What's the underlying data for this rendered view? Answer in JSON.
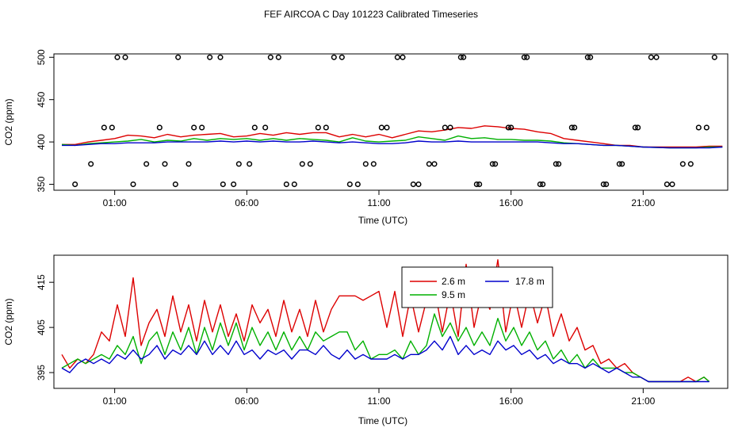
{
  "title": "FEF AIRCOA C  Day 101223  Calibrated Timeseries",
  "chart_data": [
    {
      "type": "line",
      "panel": "top",
      "xlabel": "Time (UTC)",
      "ylabel": "CO2 (ppm)",
      "x_ticks": [
        1,
        6,
        11,
        16,
        21
      ],
      "x_tick_labels": [
        "01:00",
        "06:00",
        "11:00",
        "16:00",
        "21:00"
      ],
      "y_ticks": [
        350,
        400,
        450,
        500
      ],
      "y_tick_labels": [
        "350",
        "400",
        "450",
        "500"
      ],
      "xlim": [
        -1.3,
        24.2
      ],
      "ylim": [
        343,
        504
      ],
      "series": [
        {
          "name": "2.6 m",
          "color": "#dd0000",
          "x": [
            -1.0,
            -0.5,
            0.0,
            0.5,
            1.0,
            1.5,
            2.0,
            2.5,
            3.0,
            3.5,
            4.0,
            4.5,
            5.0,
            5.5,
            6.0,
            6.5,
            7.0,
            7.5,
            8.0,
            8.5,
            9.0,
            9.5,
            10.0,
            10.5,
            11.0,
            11.5,
            12.0,
            12.5,
            13.0,
            13.5,
            14.0,
            14.5,
            15.0,
            15.5,
            16.0,
            16.5,
            17.0,
            17.5,
            18.0,
            18.5,
            19.0,
            19.5,
            20.0,
            20.5,
            21.0,
            22.0,
            23.0,
            23.5,
            24.0
          ],
          "values": [
            397,
            397,
            400,
            402,
            404,
            408,
            407,
            405,
            409,
            406,
            408,
            409,
            410,
            406,
            407,
            410,
            408,
            411,
            409,
            411,
            411,
            406,
            409,
            406,
            409,
            405,
            409,
            413,
            412,
            414,
            417,
            416,
            419,
            418,
            416,
            415,
            412,
            410,
            404,
            402,
            400,
            398,
            396,
            396,
            394,
            394,
            394,
            395,
            395
          ]
        },
        {
          "name": "9.5 m",
          "color": "#00b000",
          "x": [
            -1.0,
            -0.5,
            0.0,
            0.5,
            1.0,
            1.5,
            2.0,
            2.5,
            3.0,
            3.5,
            4.0,
            4.5,
            5.0,
            5.5,
            6.0,
            6.5,
            7.0,
            7.5,
            8.0,
            8.5,
            9.0,
            9.5,
            10.0,
            10.5,
            11.0,
            11.5,
            12.0,
            12.5,
            13.0,
            13.5,
            14.0,
            14.5,
            15.0,
            15.5,
            16.0,
            16.5,
            17.0,
            17.5,
            18.0,
            18.5,
            19.0,
            19.5,
            20.0,
            20.5,
            21.0,
            22.0,
            23.0,
            23.5,
            24.0
          ],
          "values": [
            397,
            396,
            398,
            399,
            400,
            401,
            403,
            400,
            402,
            401,
            404,
            402,
            404,
            403,
            404,
            402,
            404,
            402,
            404,
            403,
            402,
            400,
            405,
            401,
            400,
            401,
            402,
            406,
            404,
            402,
            407,
            404,
            405,
            403,
            403,
            402,
            402,
            401,
            399,
            398,
            397,
            396,
            396,
            395,
            394,
            393,
            393,
            394,
            394
          ]
        },
        {
          "name": "17.8 m",
          "color": "#0000cc",
          "x": [
            -1.0,
            -0.5,
            0.0,
            0.5,
            1.0,
            1.5,
            2.0,
            2.5,
            3.0,
            3.5,
            4.0,
            4.5,
            5.0,
            5.5,
            6.0,
            6.5,
            7.0,
            7.5,
            8.0,
            8.5,
            9.0,
            9.5,
            10.0,
            10.5,
            11.0,
            11.5,
            12.0,
            12.5,
            13.0,
            13.5,
            14.0,
            14.5,
            15.0,
            15.5,
            16.0,
            16.5,
            17.0,
            17.5,
            18.0,
            18.5,
            19.0,
            19.5,
            20.0,
            20.5,
            21.0,
            22.0,
            23.0,
            23.5,
            24.0
          ],
          "values": [
            396,
            396,
            397,
            398,
            398,
            399,
            399,
            399,
            400,
            400,
            400,
            400,
            401,
            400,
            401,
            400,
            401,
            400,
            400,
            401,
            400,
            399,
            400,
            399,
            398,
            398,
            399,
            401,
            400,
            400,
            401,
            400,
            400,
            400,
            400,
            400,
            400,
            399,
            398,
            398,
            397,
            396,
            396,
            395,
            394,
            393,
            393,
            393,
            394
          ]
        }
      ],
      "calibration_points": {
        "marker": "open-circle",
        "x": [
          -0.5,
          0.1,
          0.6,
          1.1,
          1.7,
          2.2,
          2.7,
          3.3,
          3.8,
          4.3,
          5.0,
          5.5,
          6.1,
          6.7,
          7.2,
          7.8,
          8.4,
          9.0,
          9.6,
          10.2,
          10.8,
          11.3,
          11.9,
          12.5,
          13.1,
          13.7,
          14.2,
          14.8,
          15.4,
          16.0,
          16.6,
          17.2,
          17.8,
          18.4,
          19.0,
          19.6,
          20.2,
          20.8,
          21.5,
          22.1,
          22.8,
          23.4,
          0.9,
          1.4,
          2.9,
          3.4,
          4.0,
          4.6,
          5.1,
          5.7,
          6.3,
          6.9,
          7.5,
          8.1,
          8.7,
          9.3,
          9.9,
          10.5,
          11.1,
          11.7,
          12.3,
          12.9,
          13.5,
          14.1,
          14.7,
          15.3,
          15.9,
          16.5,
          17.1,
          17.7,
          18.3,
          18.9,
          19.5,
          20.1,
          20.7,
          21.3,
          21.9,
          22.5,
          23.1,
          23.7
        ],
        "values": [
          350,
          374,
          417,
          500,
          350,
          374,
          417,
          350,
          374,
          417,
          500,
          350,
          374,
          417,
          500,
          350,
          374,
          417,
          500,
          350,
          374,
          417,
          500,
          350,
          374,
          417,
          500,
          350,
          374,
          417,
          500,
          350,
          374,
          417,
          500,
          350,
          374,
          417,
          500,
          350,
          374,
          417,
          417,
          500,
          374,
          500,
          417,
          500,
          350,
          374,
          417,
          500,
          350,
          374,
          417,
          500,
          350,
          374,
          417,
          500,
          350,
          374,
          417,
          500,
          350,
          374,
          417,
          500,
          350,
          374,
          417,
          500,
          350,
          374,
          417,
          500,
          350,
          374,
          417,
          500
        ]
      }
    },
    {
      "type": "line",
      "panel": "bottom",
      "xlabel": "Time (UTC)",
      "ylabel": "CO2 (ppm)",
      "x_ticks": [
        1,
        6,
        11,
        16,
        21
      ],
      "x_tick_labels": [
        "01:00",
        "06:00",
        "11:00",
        "16:00",
        "21:00"
      ],
      "y_ticks": [
        395,
        405,
        415
      ],
      "y_tick_labels": [
        "395",
        "405",
        "415"
      ],
      "xlim": [
        -1.3,
        24.2
      ],
      "ylim": [
        391.5,
        421
      ],
      "legend": {
        "position": "top-center",
        "entries": [
          "2.6 m",
          "17.8 m",
          "9.5 m"
        ]
      },
      "series": [
        {
          "name": "2.6 m",
          "color": "#dd0000",
          "x": [
            -1.0,
            -0.7,
            -0.4,
            -0.1,
            0.2,
            0.5,
            0.8,
            1.1,
            1.4,
            1.7,
            2.0,
            2.3,
            2.6,
            2.9,
            3.2,
            3.5,
            3.8,
            4.1,
            4.4,
            4.7,
            5.0,
            5.3,
            5.6,
            5.9,
            6.2,
            6.5,
            6.8,
            7.1,
            7.4,
            7.7,
            8.0,
            8.3,
            8.6,
            8.9,
            9.2,
            9.5,
            9.8,
            10.1,
            10.4,
            10.7,
            11.0,
            11.3,
            11.6,
            11.9,
            12.2,
            12.5,
            12.8,
            13.1,
            13.4,
            13.7,
            14.0,
            14.3,
            14.6,
            14.9,
            15.2,
            15.5,
            15.8,
            16.1,
            16.4,
            16.7,
            17.0,
            17.3,
            17.6,
            17.9,
            18.2,
            18.5,
            18.8,
            19.1,
            19.4,
            19.7,
            20.0,
            20.3,
            20.6,
            20.9,
            21.2,
            21.5,
            21.8,
            22.1,
            22.4,
            22.7,
            23.0,
            23.3,
            23.5
          ],
          "values": [
            399,
            396,
            398,
            397,
            399,
            404,
            402,
            410,
            403,
            416,
            401,
            406,
            409,
            403,
            412,
            404,
            410,
            402,
            411,
            404,
            410,
            403,
            408,
            402,
            410,
            406,
            409,
            403,
            411,
            404,
            409,
            403,
            411,
            404,
            409,
            412,
            412,
            412,
            411,
            412,
            413,
            405,
            413,
            403,
            412,
            404,
            411,
            414,
            404,
            413,
            403,
            419,
            405,
            413,
            409,
            420,
            404,
            413,
            405,
            413,
            406,
            412,
            403,
            408,
            402,
            405,
            400,
            401,
            397,
            398,
            396,
            397,
            395,
            394,
            393,
            393,
            393,
            393,
            393,
            394,
            393,
            394,
            393
          ]
        },
        {
          "name": "9.5 m",
          "color": "#00b000",
          "x": [
            -1.0,
            -0.7,
            -0.4,
            -0.1,
            0.2,
            0.5,
            0.8,
            1.1,
            1.4,
            1.7,
            2.0,
            2.3,
            2.6,
            2.9,
            3.2,
            3.5,
            3.8,
            4.1,
            4.4,
            4.7,
            5.0,
            5.3,
            5.6,
            5.9,
            6.2,
            6.5,
            6.8,
            7.1,
            7.4,
            7.7,
            8.0,
            8.3,
            8.6,
            8.9,
            9.2,
            9.5,
            9.8,
            10.1,
            10.4,
            10.7,
            11.0,
            11.3,
            11.6,
            11.9,
            12.2,
            12.5,
            12.8,
            13.1,
            13.4,
            13.7,
            14.0,
            14.3,
            14.6,
            14.9,
            15.2,
            15.5,
            15.8,
            16.1,
            16.4,
            16.7,
            17.0,
            17.3,
            17.6,
            17.9,
            18.2,
            18.5,
            18.8,
            19.1,
            19.4,
            19.7,
            20.0,
            20.3,
            20.6,
            20.9,
            21.2,
            21.5,
            21.8,
            22.1,
            22.4,
            22.7,
            23.0,
            23.3,
            23.5
          ],
          "values": [
            396,
            397,
            398,
            397,
            398,
            399,
            398,
            401,
            399,
            403,
            397,
            402,
            404,
            399,
            404,
            400,
            405,
            399,
            405,
            400,
            406,
            401,
            406,
            400,
            405,
            401,
            404,
            400,
            404,
            400,
            403,
            400,
            404,
            402,
            403,
            404,
            404,
            400,
            402,
            398,
            399,
            399,
            400,
            398,
            402,
            399,
            401,
            408,
            403,
            406,
            402,
            405,
            401,
            404,
            401,
            407,
            402,
            405,
            401,
            404,
            400,
            402,
            398,
            400,
            397,
            399,
            396,
            398,
            396,
            396,
            396,
            395,
            395,
            394,
            393,
            393,
            393,
            393,
            393,
            393,
            393,
            394,
            393
          ]
        },
        {
          "name": "17.8 m",
          "color": "#0000cc",
          "x": [
            -1.0,
            -0.7,
            -0.4,
            -0.1,
            0.2,
            0.5,
            0.8,
            1.1,
            1.4,
            1.7,
            2.0,
            2.3,
            2.6,
            2.9,
            3.2,
            3.5,
            3.8,
            4.1,
            4.4,
            4.7,
            5.0,
            5.3,
            5.6,
            5.9,
            6.2,
            6.5,
            6.8,
            7.1,
            7.4,
            7.7,
            8.0,
            8.3,
            8.6,
            8.9,
            9.2,
            9.5,
            9.8,
            10.1,
            10.4,
            10.7,
            11.0,
            11.3,
            11.6,
            11.9,
            12.2,
            12.5,
            12.8,
            13.1,
            13.4,
            13.7,
            14.0,
            14.3,
            14.6,
            14.9,
            15.2,
            15.5,
            15.8,
            16.1,
            16.4,
            16.7,
            17.0,
            17.3,
            17.6,
            17.9,
            18.2,
            18.5,
            18.8,
            19.1,
            19.4,
            19.7,
            20.0,
            20.3,
            20.6,
            20.9,
            21.2,
            21.5,
            21.8,
            22.1,
            22.4,
            22.7,
            23.0,
            23.3,
            23.5
          ],
          "values": [
            396,
            395,
            397,
            398,
            397,
            398,
            397,
            399,
            398,
            400,
            398,
            399,
            401,
            398,
            400,
            399,
            401,
            399,
            402,
            399,
            401,
            399,
            402,
            399,
            400,
            398,
            400,
            399,
            400,
            398,
            400,
            400,
            399,
            401,
            399,
            398,
            400,
            398,
            399,
            398,
            398,
            398,
            399,
            398,
            399,
            399,
            400,
            402,
            400,
            403,
            399,
            401,
            399,
            400,
            399,
            402,
            400,
            401,
            399,
            400,
            398,
            399,
            397,
            398,
            397,
            397,
            396,
            397,
            396,
            395,
            396,
            395,
            394,
            394,
            393,
            393,
            393,
            393,
            393,
            393,
            393,
            393,
            393
          ]
        }
      ]
    }
  ]
}
